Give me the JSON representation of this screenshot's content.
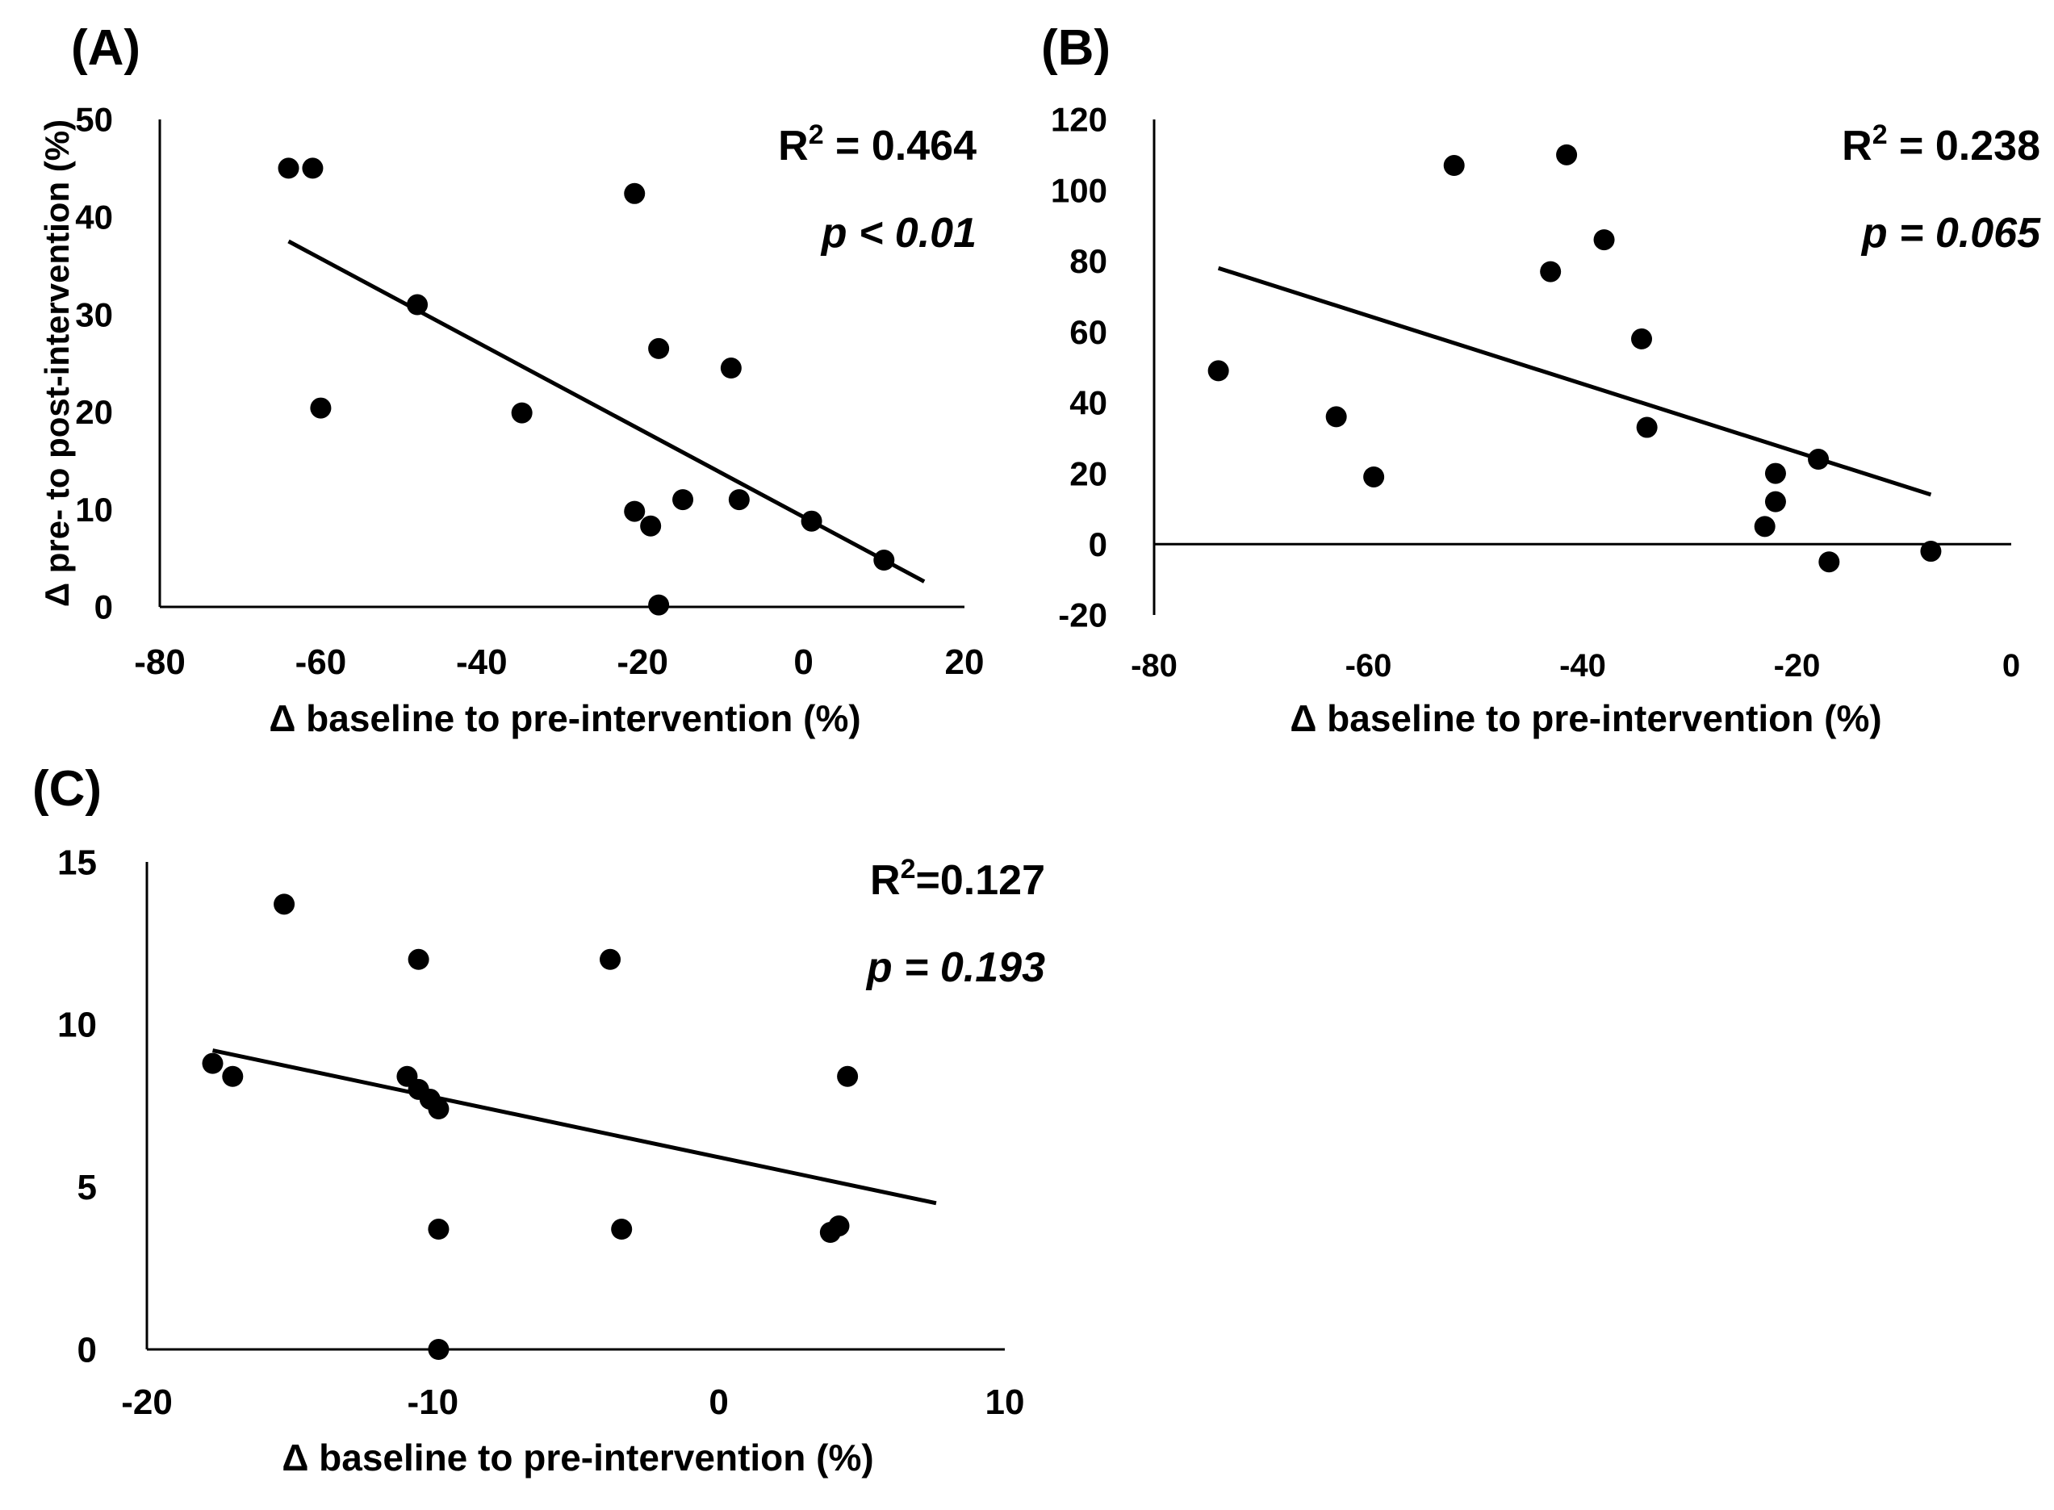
{
  "chart_data": [
    {
      "panel": "(A)",
      "type": "scatter",
      "xlabel": "Δ baseline to pre-intervention (%)",
      "ylabel": "Δ pre- to post-intervention (%)",
      "xlim": [
        -80,
        20
      ],
      "ylim": [
        0,
        50
      ],
      "xticks": [
        -80,
        -60,
        -40,
        -20,
        0,
        20
      ],
      "yticks": [
        0,
        10,
        20,
        30,
        40,
        50
      ],
      "x": [
        -64,
        -61,
        -60,
        -48,
        -35,
        -21,
        -21,
        -19,
        -18,
        -18,
        -15,
        -9,
        -8,
        1,
        10
      ],
      "y": [
        45,
        45,
        20.4,
        31,
        19.9,
        42.4,
        9.8,
        8.3,
        26.5,
        0.2,
        11,
        24.5,
        11,
        8.8,
        4.8
      ],
      "trendline": [
        [
          -64,
          37.5
        ],
        [
          15,
          2.6
        ]
      ],
      "r2_label": "R",
      "r2_sup": "2",
      "r2_value": " = 0.464",
      "p_label": "p",
      "p_value": " < 0.01"
    },
    {
      "panel": "(B)",
      "type": "scatter",
      "xlabel": "Δ baseline to pre-intervention (%)",
      "ylabel": "",
      "xlim": [
        -80,
        0
      ],
      "ylim": [
        -20,
        120
      ],
      "xticks": [
        -80,
        -60,
        -40,
        -20,
        0
      ],
      "yticks": [
        -20,
        0,
        20,
        40,
        60,
        80,
        100,
        120
      ],
      "x": [
        -74,
        -63,
        -59.5,
        -52,
        -43,
        -41.5,
        -38,
        -34.5,
        -34,
        -23,
        -22,
        -22,
        -18,
        -17,
        -7.5
      ],
      "y": [
        49,
        36,
        19,
        107,
        77,
        110,
        86,
        58,
        33,
        5,
        20,
        12,
        24,
        -5,
        -2
      ],
      "trendline": [
        [
          -74,
          78
        ],
        [
          -7.5,
          14
        ]
      ],
      "r2_label": "R",
      "r2_sup": "2",
      "r2_value": " = 0.238",
      "p_label": "p",
      "p_value": " = 0.065"
    },
    {
      "panel": "(C)",
      "type": "scatter",
      "xlabel": "Δ baseline to pre-intervention (%)",
      "ylabel": "",
      "xlim": [
        -20,
        10
      ],
      "ylim": [
        0,
        15
      ],
      "xticks": [
        -20,
        -10,
        0,
        10
      ],
      "yticks": [
        0,
        5,
        10,
        15
      ],
      "x": [
        -17.7,
        -17,
        -15.2,
        -10.9,
        -10.5,
        -10.5,
        -10.1,
        -9.8,
        -9.8,
        -9.8,
        -3.8,
        -3.4,
        3.9,
        4.2,
        4.5
      ],
      "y": [
        8.8,
        8.4,
        13.7,
        8.4,
        8.0,
        12.0,
        7.7,
        7.4,
        3.7,
        0,
        12.0,
        3.7,
        3.6,
        3.8,
        8.4
      ],
      "trendline": [
        [
          -17.7,
          9.2
        ],
        [
          7.6,
          4.5
        ]
      ],
      "r2_label": "R",
      "r2_sup": "2",
      "r2_value": "=0.127",
      "p_label": "p",
      "p_value": " = 0.193"
    }
  ]
}
